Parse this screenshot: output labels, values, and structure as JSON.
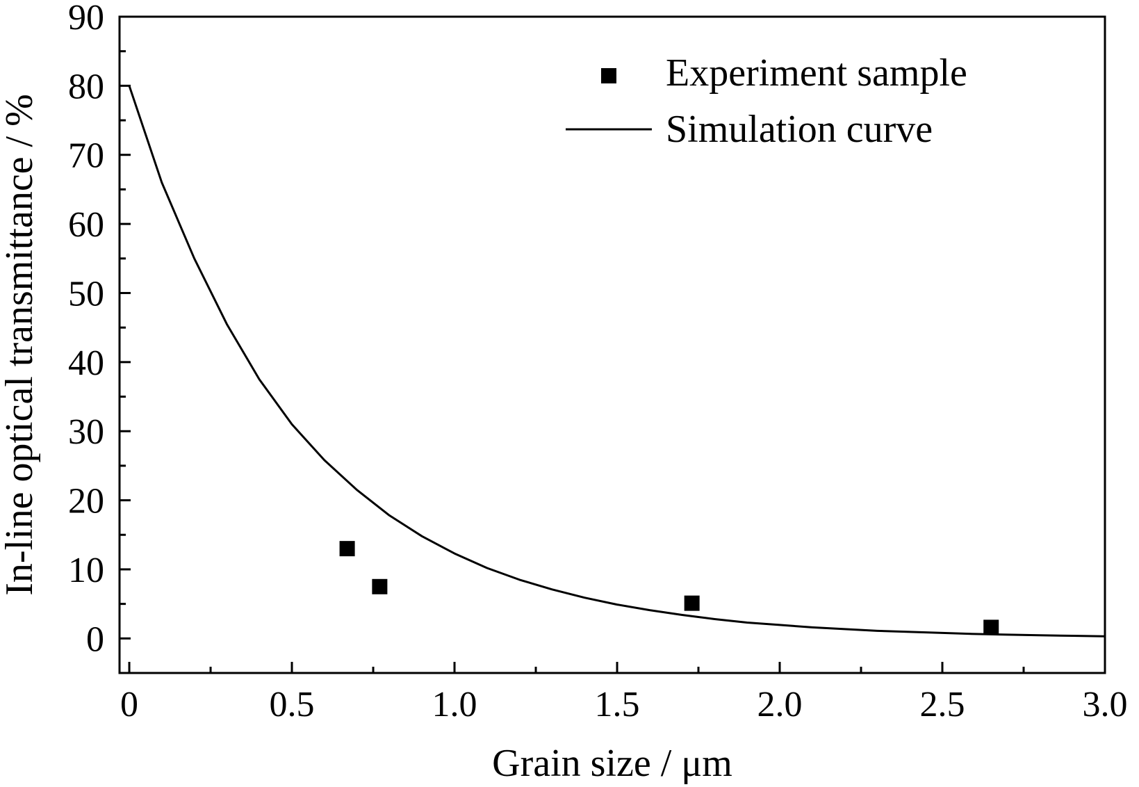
{
  "chart_data": {
    "type": "scatter",
    "title": "",
    "xlabel": "Grain size / μm",
    "ylabel": "In-line optical transmittance / %",
    "xlim": [
      -0.03,
      3.0
    ],
    "ylim": [
      -5,
      90
    ],
    "x_ticks": [
      0,
      0.5,
      1.0,
      1.5,
      2.0,
      2.5,
      3.0
    ],
    "x_tick_labels": [
      "0",
      "0.5",
      "1.0",
      "1.5",
      "2.0",
      "2.5",
      "3.0"
    ],
    "y_ticks": [
      0,
      10,
      20,
      30,
      40,
      50,
      60,
      70,
      80,
      90
    ],
    "y_tick_labels": [
      "0",
      "10",
      "20",
      "30",
      "40",
      "50",
      "60",
      "70",
      "80",
      "90"
    ],
    "grid": false,
    "legend_position": "top-right",
    "series": [
      {
        "name": "Experiment sample",
        "kind": "scatter",
        "marker": "square",
        "color": "#000000",
        "points": [
          {
            "x": 0.67,
            "y": 13.0
          },
          {
            "x": 0.77,
            "y": 7.5
          },
          {
            "x": 1.73,
            "y": 5.1
          },
          {
            "x": 2.65,
            "y": 1.6
          }
        ]
      },
      {
        "name": "Simulation curve",
        "kind": "line",
        "color": "#000000",
        "points": [
          {
            "x": 0.0,
            "y": 80.0
          },
          {
            "x": 0.1,
            "y": 66.0
          },
          {
            "x": 0.2,
            "y": 55.0
          },
          {
            "x": 0.3,
            "y": 45.5
          },
          {
            "x": 0.4,
            "y": 37.5
          },
          {
            "x": 0.5,
            "y": 31.0
          },
          {
            "x": 0.6,
            "y": 25.8
          },
          {
            "x": 0.7,
            "y": 21.5
          },
          {
            "x": 0.8,
            "y": 17.8
          },
          {
            "x": 0.9,
            "y": 14.8
          },
          {
            "x": 1.0,
            "y": 12.3
          },
          {
            "x": 1.1,
            "y": 10.2
          },
          {
            "x": 1.2,
            "y": 8.5
          },
          {
            "x": 1.3,
            "y": 7.1
          },
          {
            "x": 1.4,
            "y": 5.9
          },
          {
            "x": 1.5,
            "y": 4.9
          },
          {
            "x": 1.6,
            "y": 4.1
          },
          {
            "x": 1.7,
            "y": 3.4
          },
          {
            "x": 1.8,
            "y": 2.8
          },
          {
            "x": 1.9,
            "y": 2.3
          },
          {
            "x": 2.0,
            "y": 1.95
          },
          {
            "x": 2.1,
            "y": 1.6
          },
          {
            "x": 2.2,
            "y": 1.35
          },
          {
            "x": 2.3,
            "y": 1.1
          },
          {
            "x": 2.4,
            "y": 0.95
          },
          {
            "x": 2.5,
            "y": 0.8
          },
          {
            "x": 2.6,
            "y": 0.65
          },
          {
            "x": 2.7,
            "y": 0.55
          },
          {
            "x": 2.8,
            "y": 0.45
          },
          {
            "x": 2.9,
            "y": 0.38
          },
          {
            "x": 3.0,
            "y": 0.3
          }
        ]
      }
    ]
  }
}
